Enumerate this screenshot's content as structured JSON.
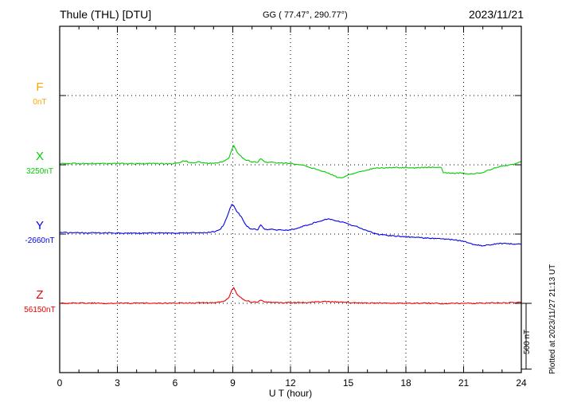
{
  "header": {
    "station": "Thule (THL)  [DTU]",
    "coords": "GG ( 77.47°, 290.77°)",
    "date": "2023/11/21"
  },
  "side": {
    "scale_label": "500 nT",
    "plotted_at": "Plotted at 2023/11/27 21:13 UT"
  },
  "chart_data": {
    "type": "line",
    "xlabel": "U T (hour)",
    "xlim": [
      0,
      24
    ],
    "x_ticks": [
      0,
      3,
      6,
      9,
      12,
      15,
      18,
      21,
      24
    ],
    "x_minor_step": 1,
    "grid": "dotted-vertical-every-3h-and-dotted-horizontal-baselines",
    "scale_nT": 500,
    "scale_frac": 0.19,
    "series": [
      {
        "name": "F",
        "unit_label": "0nT",
        "color": "#ffa500",
        "baseline_frac": 0.2,
        "points": []
      },
      {
        "name": "X",
        "unit_label": "3250nT",
        "color": "#00cc00",
        "baseline_frac": 0.4,
        "points": [
          [
            0,
            10
          ],
          [
            0.4,
            8
          ],
          [
            0.8,
            11
          ],
          [
            1.2,
            8
          ],
          [
            1.6,
            10
          ],
          [
            2,
            8
          ],
          [
            2.4,
            9
          ],
          [
            2.8,
            8
          ],
          [
            3.2,
            10
          ],
          [
            3.6,
            8
          ],
          [
            4,
            9
          ],
          [
            4.4,
            8
          ],
          [
            4.8,
            10
          ],
          [
            5.2,
            8
          ],
          [
            5.6,
            9
          ],
          [
            6,
            10
          ],
          [
            6.2,
            14
          ],
          [
            6.4,
            32
          ],
          [
            6.6,
            26
          ],
          [
            6.8,
            14
          ],
          [
            7,
            16
          ],
          [
            7.2,
            24
          ],
          [
            7.4,
            16
          ],
          [
            7.6,
            12
          ],
          [
            8,
            12
          ],
          [
            8.2,
            16
          ],
          [
            8.4,
            22
          ],
          [
            8.6,
            30
          ],
          [
            8.8,
            55
          ],
          [
            8.95,
            120
          ],
          [
            9.05,
            145
          ],
          [
            9.15,
            118
          ],
          [
            9.3,
            80
          ],
          [
            9.5,
            52
          ],
          [
            9.7,
            36
          ],
          [
            9.9,
            28
          ],
          [
            10.1,
            22
          ],
          [
            10.3,
            20
          ],
          [
            10.45,
            48
          ],
          [
            10.6,
            28
          ],
          [
            10.8,
            16
          ],
          [
            11,
            20
          ],
          [
            11.2,
            14
          ],
          [
            11.4,
            16
          ],
          [
            11.6,
            12
          ],
          [
            11.8,
            14
          ],
          [
            12,
            10
          ],
          [
            12.3,
            4
          ],
          [
            12.6,
            -2
          ],
          [
            12.9,
            -14
          ],
          [
            13.2,
            -28
          ],
          [
            13.5,
            -40
          ],
          [
            13.8,
            -55
          ],
          [
            14.1,
            -72
          ],
          [
            14.4,
            -92
          ],
          [
            14.6,
            -100
          ],
          [
            14.8,
            -92
          ],
          [
            15,
            -78
          ],
          [
            15.2,
            -68
          ],
          [
            15.5,
            -58
          ],
          [
            15.8,
            -46
          ],
          [
            16.1,
            -34
          ],
          [
            16.4,
            -27
          ],
          [
            16.8,
            -24
          ],
          [
            17.2,
            -22
          ],
          [
            17.6,
            -21
          ],
          [
            18,
            -21
          ],
          [
            18.4,
            -23
          ],
          [
            18.8,
            -21
          ],
          [
            19.2,
            -19
          ],
          [
            19.6,
            -20
          ],
          [
            19.85,
            -22
          ],
          [
            19.95,
            -58
          ],
          [
            20.2,
            -62
          ],
          [
            20.5,
            -66
          ],
          [
            20.8,
            -62
          ],
          [
            21.1,
            -66
          ],
          [
            21.4,
            -70
          ],
          [
            21.7,
            -64
          ],
          [
            22,
            -58
          ],
          [
            22.3,
            -40
          ],
          [
            22.6,
            -24
          ],
          [
            22.9,
            -12
          ],
          [
            23.2,
            -6
          ],
          [
            23.5,
            0
          ],
          [
            23.8,
            12
          ],
          [
            24,
            24
          ]
        ]
      },
      {
        "name": "Y",
        "unit_label": "-2660nT",
        "color": "#0000ee",
        "baseline_frac": 0.6,
        "points": [
          [
            0,
            16
          ],
          [
            0.3,
            11
          ],
          [
            0.6,
            9
          ],
          [
            1,
            10
          ],
          [
            1.4,
            8
          ],
          [
            1.8,
            9
          ],
          [
            2.2,
            8
          ],
          [
            2.6,
            9
          ],
          [
            3,
            8
          ],
          [
            3.4,
            7
          ],
          [
            3.8,
            8
          ],
          [
            4.2,
            7
          ],
          [
            4.6,
            8
          ],
          [
            5,
            7
          ],
          [
            5.4,
            8
          ],
          [
            5.8,
            7
          ],
          [
            6.2,
            8
          ],
          [
            6.6,
            9
          ],
          [
            7,
            11
          ],
          [
            7.4,
            9
          ],
          [
            7.8,
            13
          ],
          [
            8.1,
            18
          ],
          [
            8.3,
            30
          ],
          [
            8.5,
            65
          ],
          [
            8.7,
            130
          ],
          [
            8.85,
            195
          ],
          [
            8.95,
            228
          ],
          [
            9.05,
            215
          ],
          [
            9.15,
            185
          ],
          [
            9.3,
            158
          ],
          [
            9.45,
            128
          ],
          [
            9.6,
            88
          ],
          [
            9.75,
            58
          ],
          [
            9.9,
            44
          ],
          [
            10.1,
            38
          ],
          [
            10.3,
            33
          ],
          [
            10.45,
            72
          ],
          [
            10.6,
            42
          ],
          [
            10.8,
            32
          ],
          [
            11,
            36
          ],
          [
            11.2,
            30
          ],
          [
            11.4,
            34
          ],
          [
            11.7,
            30
          ],
          [
            12,
            32
          ],
          [
            12.3,
            42
          ],
          [
            12.6,
            56
          ],
          [
            12.9,
            70
          ],
          [
            13.2,
            84
          ],
          [
            13.5,
            98
          ],
          [
            13.8,
            110
          ],
          [
            14,
            114
          ],
          [
            14.2,
            106
          ],
          [
            14.5,
            96
          ],
          [
            14.8,
            88
          ],
          [
            15.1,
            72
          ],
          [
            15.4,
            58
          ],
          [
            15.7,
            42
          ],
          [
            16,
            24
          ],
          [
            16.3,
            8
          ],
          [
            16.6,
            -4
          ],
          [
            17,
            -10
          ],
          [
            17.4,
            -14
          ],
          [
            17.8,
            -18
          ],
          [
            18.2,
            -22
          ],
          [
            18.6,
            -26
          ],
          [
            19,
            -30
          ],
          [
            19.4,
            -33
          ],
          [
            19.8,
            -36
          ],
          [
            20.2,
            -40
          ],
          [
            20.6,
            -46
          ],
          [
            21,
            -56
          ],
          [
            21.3,
            -70
          ],
          [
            21.6,
            -82
          ],
          [
            22,
            -88
          ],
          [
            22.3,
            -82
          ],
          [
            22.6,
            -76
          ],
          [
            23,
            -72
          ],
          [
            23.4,
            -74
          ],
          [
            23.8,
            -76
          ],
          [
            24,
            -78
          ]
        ]
      },
      {
        "name": "Z",
        "unit_label": "56150nT",
        "color": "#ee0000",
        "baseline_frac": 0.8,
        "points": [
          [
            0,
            2
          ],
          [
            0.5,
            0
          ],
          [
            1,
            2
          ],
          [
            1.5,
            1
          ],
          [
            2,
            2
          ],
          [
            2.5,
            0
          ],
          [
            3,
            2
          ],
          [
            3.5,
            1
          ],
          [
            4,
            1
          ],
          [
            4.5,
            2
          ],
          [
            5,
            1
          ],
          [
            5.5,
            2
          ],
          [
            6,
            1
          ],
          [
            6.4,
            4
          ],
          [
            6.8,
            2
          ],
          [
            7.2,
            4
          ],
          [
            7.6,
            4
          ],
          [
            8,
            5
          ],
          [
            8.3,
            8
          ],
          [
            8.6,
            18
          ],
          [
            8.8,
            48
          ],
          [
            8.95,
            105
          ],
          [
            9.05,
            118
          ],
          [
            9.15,
            88
          ],
          [
            9.3,
            55
          ],
          [
            9.5,
            32
          ],
          [
            9.7,
            20
          ],
          [
            9.9,
            13
          ],
          [
            10.1,
            10
          ],
          [
            10.3,
            9
          ],
          [
            10.45,
            26
          ],
          [
            10.6,
            13
          ],
          [
            10.8,
            9
          ],
          [
            11,
            7
          ],
          [
            11.4,
            6
          ],
          [
            11.8,
            5
          ],
          [
            12.2,
            5
          ],
          [
            12.6,
            6
          ],
          [
            13,
            8
          ],
          [
            13.4,
            11
          ],
          [
            13.8,
            14
          ],
          [
            14.1,
            12
          ],
          [
            14.4,
            10
          ],
          [
            14.8,
            8
          ],
          [
            15.2,
            6
          ],
          [
            15.6,
            4
          ],
          [
            16,
            3
          ],
          [
            16.5,
            2
          ],
          [
            17,
            2
          ],
          [
            17.5,
            1
          ],
          [
            18,
            2
          ],
          [
            18.5,
            1
          ],
          [
            19,
            2
          ],
          [
            19.5,
            1
          ],
          [
            20,
            -3
          ],
          [
            20.5,
            0
          ],
          [
            21,
            2
          ],
          [
            21.5,
            1
          ],
          [
            22,
            2
          ],
          [
            22.5,
            4
          ],
          [
            23,
            3
          ],
          [
            23.5,
            5
          ],
          [
            24,
            7
          ]
        ]
      }
    ]
  }
}
